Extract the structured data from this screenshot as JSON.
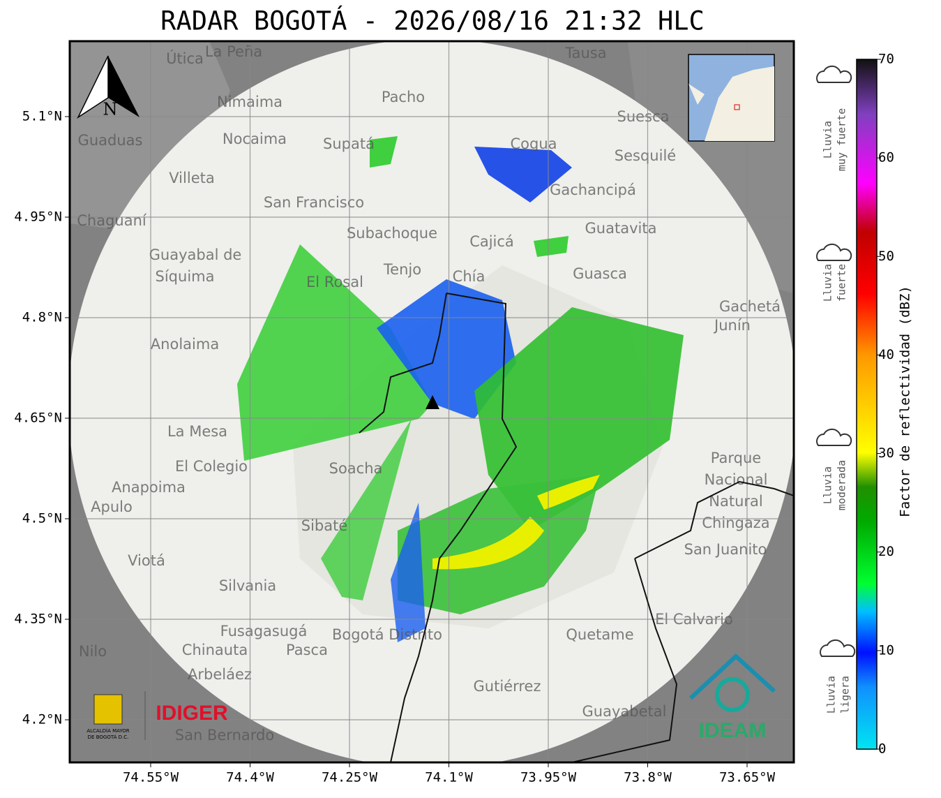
{
  "map": {
    "title": "RADAR BOGOTÁ - 2026/08/16 21:32 HLC",
    "north_label": "N",
    "xticks": [
      {
        "value": -74.55,
        "label": "74.55°W"
      },
      {
        "value": -74.4,
        "label": "74.4°W"
      },
      {
        "value": -74.25,
        "label": "74.25°W"
      },
      {
        "value": -74.1,
        "label": "74.1°W"
      },
      {
        "value": -73.95,
        "label": "73.95°W"
      },
      {
        "value": -73.8,
        "label": "73.8°W"
      },
      {
        "value": -73.65,
        "label": "73.65°W"
      }
    ],
    "yticks": [
      {
        "value": 5.1,
        "label": "5.1°N"
      },
      {
        "value": 4.95,
        "label": "4.95°N"
      },
      {
        "value": 4.8,
        "label": "4.8°N"
      },
      {
        "value": 4.65,
        "label": "4.65°N"
      },
      {
        "value": 4.5,
        "label": "4.5°N"
      },
      {
        "value": 4.35,
        "label": "4.35°N"
      },
      {
        "value": 4.2,
        "label": "4.2°N"
      }
    ],
    "places": [
      "La Peña",
      "Útica",
      "Tausa",
      "Pacho",
      "Nimaima",
      "Suesca",
      "Guaduas",
      "Nocaima",
      "Supatá",
      "Cogua",
      "Sesquilé",
      "Villeta",
      "Gachancipá",
      "San Francisco",
      "Chaguaní",
      "Guatavita",
      "Subachoque",
      "Cajicá",
      "Guayabal de",
      "Síquima",
      "Tenjo",
      "Chía",
      "Guasca",
      "El Rosal",
      "Gachetá",
      "Junín",
      "Anolaima",
      "La Mesa",
      "El Colegio",
      "Soacha",
      "Parque",
      "Nacional",
      "Natural",
      "Chingaza",
      "Anapoima",
      "Apulo",
      "Sibaté",
      "San Juanito",
      "Viotá",
      "Silvania",
      "El Calvario",
      "Fusagasugá",
      "Bogotá Distrito",
      "Quetame",
      "Nilo",
      "Chinauta",
      "Pasca",
      "Arbeláez",
      "Gutiérrez",
      "Guayabetal",
      "San Bernardo"
    ],
    "logos": {
      "left_small": "ALCALDÍA MAYOR",
      "left_small2": "DE BOGOTÁ D.C.",
      "idiger": "IDIGER",
      "ideam": "IDEAM"
    },
    "colorbar": {
      "label": "Factor de reflectividad (dBZ)",
      "lim": [
        0,
        70
      ],
      "ticks": [
        0,
        10,
        20,
        30,
        40,
        50,
        60,
        70
      ],
      "categories": [
        {
          "lines": [
            "Lluvia",
            "muy fuerte"
          ]
        },
        {
          "lines": [
            "Lluvia",
            "fuerte"
          ]
        },
        {
          "lines": [
            "Lluvia",
            "moderada"
          ]
        },
        {
          "lines": [
            "Lluvia",
            "ligera"
          ]
        }
      ]
    }
  }
}
